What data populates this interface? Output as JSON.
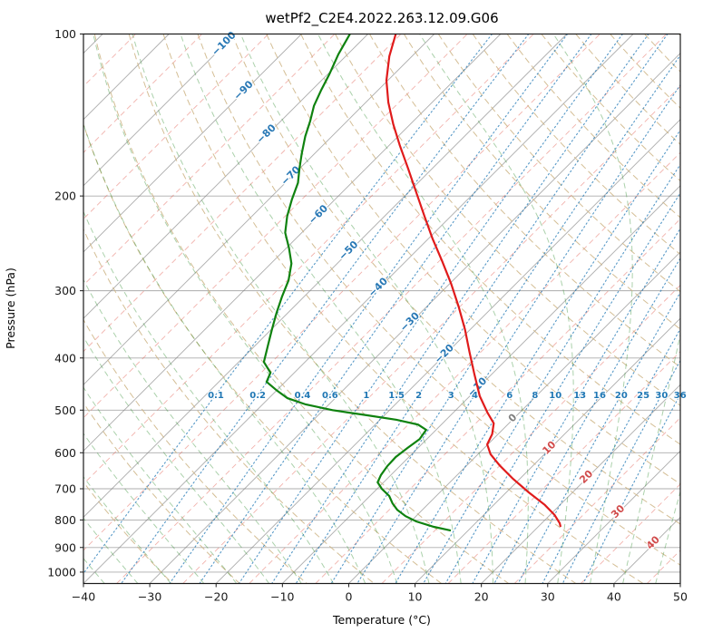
{
  "title": "wetPf2_C2E4.2022.263.12.09.G06",
  "axes": {
    "xlabel": "Temperature (°C)",
    "ylabel": "Pressure (hPa)",
    "x_ticks": [
      -40,
      -30,
      -20,
      -10,
      0,
      10,
      20,
      30,
      40,
      50
    ],
    "p_ticks": [
      100,
      200,
      300,
      400,
      500,
      600,
      700,
      800,
      900,
      1000
    ],
    "x_range": [
      -40,
      50
    ],
    "p_range": [
      100,
      1050
    ]
  },
  "chart_data": {
    "type": "line",
    "diagram": "skew-t-log-p",
    "skew_c_per_decade": 81.3,
    "series": [
      {
        "name": "temperature",
        "color": "#e01b1b",
        "points_p_t": [
          [
            100,
            -75.8
          ],
          [
            110,
            -73.4
          ],
          [
            122,
            -70.2
          ],
          [
            134,
            -66.6
          ],
          [
            147,
            -62.6
          ],
          [
            161,
            -58.4
          ],
          [
            178,
            -53.6
          ],
          [
            197,
            -48.8
          ],
          [
            218,
            -44.0
          ],
          [
            240,
            -39.4
          ],
          [
            264,
            -34.6
          ],
          [
            291,
            -29.8
          ],
          [
            321,
            -25.2
          ],
          [
            354,
            -20.8
          ],
          [
            390,
            -16.7
          ],
          [
            429,
            -12.6
          ],
          [
            471,
            -8.5
          ],
          [
            505,
            -4.9
          ],
          [
            529,
            -2.3
          ],
          [
            554,
            -0.9
          ],
          [
            579,
            -0.1
          ],
          [
            604,
            1.9
          ],
          [
            633,
            4.9
          ],
          [
            671,
            9.0
          ],
          [
            711,
            13.4
          ],
          [
            750,
            17.7
          ],
          [
            783,
            20.7
          ],
          [
            811,
            22.7
          ],
          [
            824,
            23.4
          ]
        ]
      },
      {
        "name": "dewpoint",
        "color": "#0f820f",
        "points_p_t": [
          [
            100,
            -82.7
          ],
          [
            109,
            -81.4
          ],
          [
            119,
            -79.7
          ],
          [
            127,
            -78.6
          ],
          [
            136,
            -77.3
          ],
          [
            145,
            -75.6
          ],
          [
            155,
            -74.0
          ],
          [
            167,
            -71.9
          ],
          [
            178,
            -70.0
          ],
          [
            189,
            -68.1
          ],
          [
            203,
            -66.5
          ],
          [
            218,
            -64.7
          ],
          [
            234,
            -62.5
          ],
          [
            250,
            -59.6
          ],
          [
            267,
            -56.9
          ],
          [
            287,
            -54.8
          ],
          [
            308,
            -53.3
          ],
          [
            330,
            -51.7
          ],
          [
            354,
            -49.9
          ],
          [
            379,
            -48.1
          ],
          [
            407,
            -46.2
          ],
          [
            426,
            -43.6
          ],
          [
            443,
            -42.8
          ],
          [
            460,
            -39.9
          ],
          [
            475,
            -37.2
          ],
          [
            488,
            -33.5
          ],
          [
            500,
            -28.6
          ],
          [
            511,
            -22.7
          ],
          [
            521,
            -17.5
          ],
          [
            532,
            -13.5
          ],
          [
            544,
            -11.5
          ],
          [
            566,
            -11.1
          ],
          [
            588,
            -11.6
          ],
          [
            611,
            -12.0
          ],
          [
            635,
            -11.9
          ],
          [
            660,
            -11.5
          ],
          [
            681,
            -10.9
          ],
          [
            700,
            -9.3
          ],
          [
            722,
            -7.1
          ],
          [
            745,
            -5.5
          ],
          [
            766,
            -3.8
          ],
          [
            787,
            -1.6
          ],
          [
            805,
            0.8
          ],
          [
            824,
            4.3
          ],
          [
            837,
            7.4
          ]
        ]
      }
    ],
    "isotherms": {
      "start": -160,
      "end": 50,
      "step": 10
    },
    "minor_isotherms": {
      "start": -155,
      "end": 45,
      "step": 10
    },
    "dry_adiabats": {
      "theta_start_c": -30,
      "theta_end_c": 200,
      "step": 10
    },
    "moist_adiabats": {
      "t0_start_c": -40,
      "t0_end_c": 45,
      "step": 5
    },
    "mixing_ratio_g_kg": [
      0.1,
      0.2,
      0.4,
      0.6,
      1,
      1.5,
      2,
      3,
      4,
      6,
      8,
      10,
      13,
      16,
      20,
      25,
      30,
      36
    ],
    "mixing_label_pressure": 468,
    "isotherm_labels": [
      {
        "t": -100,
        "p": 104
      },
      {
        "t": -90,
        "p": 127
      },
      {
        "t": -80,
        "p": 153
      },
      {
        "t": -70,
        "p": 183
      },
      {
        "t": -60,
        "p": 216
      },
      {
        "t": -50,
        "p": 252
      },
      {
        "t": -40,
        "p": 295
      },
      {
        "t": -30,
        "p": 342
      },
      {
        "t": -20,
        "p": 392
      },
      {
        "t": -10,
        "p": 452
      },
      {
        "t": 0,
        "p": 516
      },
      {
        "t": 10,
        "p": 586
      },
      {
        "t": 20,
        "p": 664
      },
      {
        "t": 30,
        "p": 770
      },
      {
        "t": 40,
        "p": 880
      }
    ],
    "styles": {
      "isotherm_color": "#808080",
      "minor_isotherm_color": "#e05548",
      "dry_adiabat_color": "#cdb383",
      "moist_adiabat_color": "#2e8b2e",
      "mixing_color": "#1f77b4",
      "grid_color": "#808080",
      "frame_color": "#1a1a1a",
      "label_neg_color": "#2878b5",
      "label_zero_color": "#7f7f7f",
      "label_pos_color": "#d14b4b"
    }
  }
}
